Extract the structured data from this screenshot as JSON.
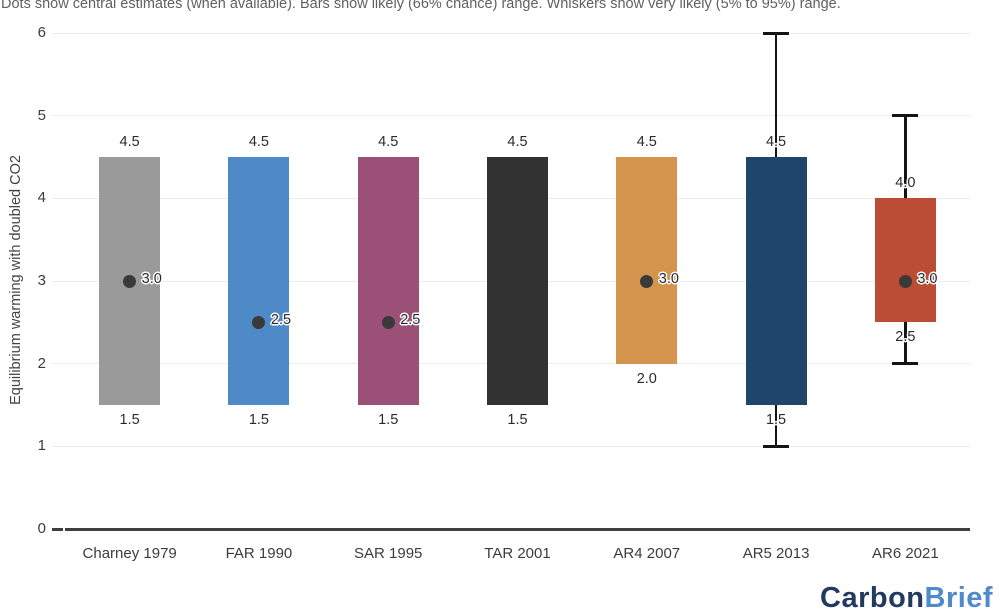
{
  "chart_data": {
    "type": "bar",
    "caption": "Dots show central estimates (when available). Bars show likely (66% chance) range. Whiskers show very likely (5% to 95%) range.",
    "ylabel": "Equilibrium warming with doubled CO2",
    "ylim": [
      0,
      6
    ],
    "yticks": [
      0,
      1,
      2,
      3,
      4,
      5,
      6
    ],
    "grid": true,
    "legend": false,
    "categories": [
      "Charney 1979",
      "FAR 1990",
      "SAR 1995",
      "TAR 2001",
      "AR4 2007",
      "AR5 2013",
      "AR6 2021"
    ],
    "series": [
      {
        "name": "Charney 1979",
        "likely_low": 1.5,
        "likely_high": 4.5,
        "central": 3.0,
        "very_likely_low": null,
        "very_likely_high": null,
        "color": "#9a9a9a"
      },
      {
        "name": "FAR 1990",
        "likely_low": 1.5,
        "likely_high": 4.5,
        "central": 2.5,
        "very_likely_low": null,
        "very_likely_high": null,
        "color": "#4d8ac7"
      },
      {
        "name": "SAR 1995",
        "likely_low": 1.5,
        "likely_high": 4.5,
        "central": 2.5,
        "very_likely_low": null,
        "very_likely_high": null,
        "color": "#9a5077"
      },
      {
        "name": "TAR 2001",
        "likely_low": 1.5,
        "likely_high": 4.5,
        "central": null,
        "very_likely_low": null,
        "very_likely_high": null,
        "color": "#323232"
      },
      {
        "name": "AR4 2007",
        "likely_low": 2.0,
        "likely_high": 4.5,
        "central": 3.0,
        "very_likely_low": null,
        "very_likely_high": null,
        "color": "#d5944d"
      },
      {
        "name": "AR5 2013",
        "likely_low": 1.5,
        "likely_high": 4.5,
        "central": null,
        "very_likely_low": 1.0,
        "very_likely_high": 6.0,
        "color": "#20456a"
      },
      {
        "name": "AR6 2021",
        "likely_low": 2.5,
        "likely_high": 4.0,
        "central": 3.0,
        "very_likely_low": 2.0,
        "very_likely_high": 5.0,
        "color": "#bb4c36"
      }
    ]
  },
  "logo": {
    "part1": "Carbon",
    "part2": "Brief",
    "color1": "#223a5e",
    "color2": "#4e8acc"
  },
  "colors": {
    "dot": "#3a3a3a",
    "whisker": "#141414",
    "axis": "#3f3f3f",
    "gridline": "#ececec"
  }
}
